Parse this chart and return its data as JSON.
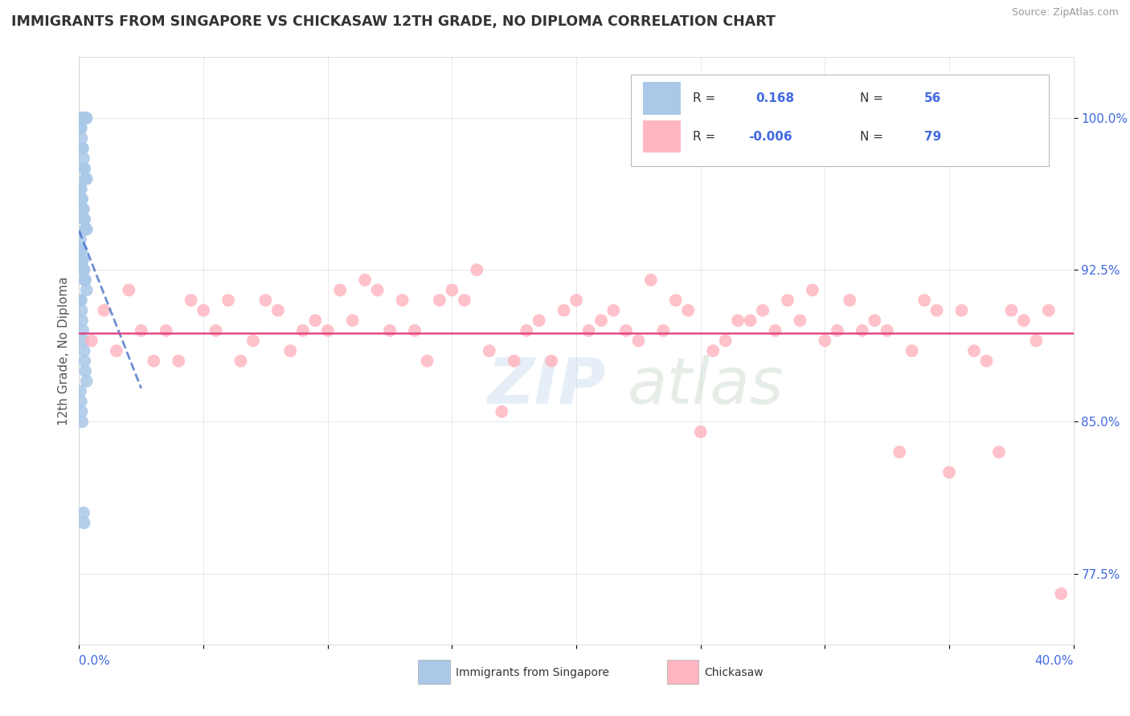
{
  "title": "IMMIGRANTS FROM SINGAPORE VS CHICKASAW 12TH GRADE, NO DIPLOMA CORRELATION CHART",
  "source": "Source: ZipAtlas.com",
  "ylabel": "12th Grade, No Diploma",
  "ytick_labels": [
    "77.5%",
    "85.0%",
    "92.5%",
    "100.0%"
  ],
  "ytick_values": [
    77.5,
    85.0,
    92.5,
    100.0
  ],
  "xlim": [
    0.0,
    40.0
  ],
  "ylim": [
    74.0,
    103.0
  ],
  "legend_r_blue": "0.168",
  "legend_n_blue": "56",
  "legend_r_pink": "-0.006",
  "legend_n_pink": "79",
  "blue_color": "#aac8e8",
  "pink_color": "#ffb6c1",
  "blue_line_color": "#3060c0",
  "pink_line_color": "#e04080",
  "singapore_x": [
    0.05,
    0.08,
    0.1,
    0.12,
    0.15,
    0.18,
    0.2,
    0.22,
    0.25,
    0.3,
    0.05,
    0.08,
    0.1,
    0.12,
    0.15,
    0.18,
    0.2,
    0.22,
    0.25,
    0.3,
    0.05,
    0.08,
    0.1,
    0.12,
    0.15,
    0.18,
    0.2,
    0.22,
    0.25,
    0.3,
    0.05,
    0.08,
    0.1,
    0.12,
    0.15,
    0.18,
    0.2,
    0.22,
    0.25,
    0.3,
    0.05,
    0.08,
    0.1,
    0.12,
    0.15,
    0.18,
    0.2,
    0.22,
    0.25,
    0.3,
    0.05,
    0.08,
    0.1,
    0.12,
    0.18,
    0.2
  ],
  "singapore_y": [
    100.0,
    100.0,
    100.0,
    100.0,
    100.0,
    100.0,
    100.0,
    100.0,
    100.0,
    100.0,
    99.5,
    99.5,
    99.0,
    98.5,
    98.5,
    98.0,
    97.5,
    97.5,
    97.0,
    97.0,
    96.5,
    96.5,
    96.0,
    96.0,
    95.5,
    95.5,
    95.0,
    95.0,
    94.5,
    94.5,
    94.0,
    93.5,
    93.5,
    93.0,
    93.0,
    92.5,
    92.5,
    92.0,
    92.0,
    91.5,
    91.0,
    91.0,
    90.5,
    90.0,
    89.5,
    89.0,
    88.5,
    88.0,
    87.5,
    87.0,
    86.5,
    86.0,
    85.5,
    85.0,
    80.5,
    80.0
  ],
  "chickasaw_x": [
    0.5,
    1.0,
    1.5,
    2.0,
    2.5,
    3.0,
    3.5,
    4.0,
    4.5,
    5.0,
    5.5,
    6.0,
    6.5,
    7.0,
    7.5,
    8.0,
    8.5,
    9.0,
    9.5,
    10.0,
    10.5,
    11.0,
    11.5,
    12.0,
    12.5,
    13.0,
    13.5,
    14.0,
    14.5,
    15.0,
    15.5,
    16.0,
    16.5,
    17.0,
    17.5,
    18.0,
    18.5,
    19.0,
    19.5,
    20.0,
    20.5,
    21.0,
    21.5,
    22.0,
    22.5,
    23.0,
    23.5,
    24.0,
    24.5,
    25.0,
    25.5,
    26.0,
    26.5,
    27.0,
    27.5,
    28.0,
    28.5,
    29.0,
    29.5,
    30.0,
    30.5,
    31.0,
    31.5,
    32.0,
    32.5,
    33.0,
    33.5,
    34.0,
    34.5,
    35.0,
    35.5,
    36.0,
    36.5,
    37.0,
    37.5,
    38.0,
    38.5,
    39.0,
    39.5
  ],
  "chickasaw_y": [
    89.0,
    90.5,
    88.5,
    91.5,
    89.5,
    88.0,
    89.5,
    88.0,
    91.0,
    90.5,
    89.5,
    91.0,
    88.0,
    89.0,
    91.0,
    90.5,
    88.5,
    89.5,
    90.0,
    89.5,
    91.5,
    90.0,
    92.0,
    91.5,
    89.5,
    91.0,
    89.5,
    88.0,
    91.0,
    91.5,
    91.0,
    92.5,
    88.5,
    85.5,
    88.0,
    89.5,
    90.0,
    88.0,
    90.5,
    91.0,
    89.5,
    90.0,
    90.5,
    89.5,
    89.0,
    92.0,
    89.5,
    91.0,
    90.5,
    84.5,
    88.5,
    89.0,
    90.0,
    90.0,
    90.5,
    89.5,
    91.0,
    90.0,
    91.5,
    89.0,
    89.5,
    91.0,
    89.5,
    90.0,
    89.5,
    83.5,
    88.5,
    91.0,
    90.5,
    82.5,
    90.5,
    88.5,
    88.0,
    83.5,
    90.5,
    90.0,
    89.0,
    90.5,
    76.5
  ]
}
